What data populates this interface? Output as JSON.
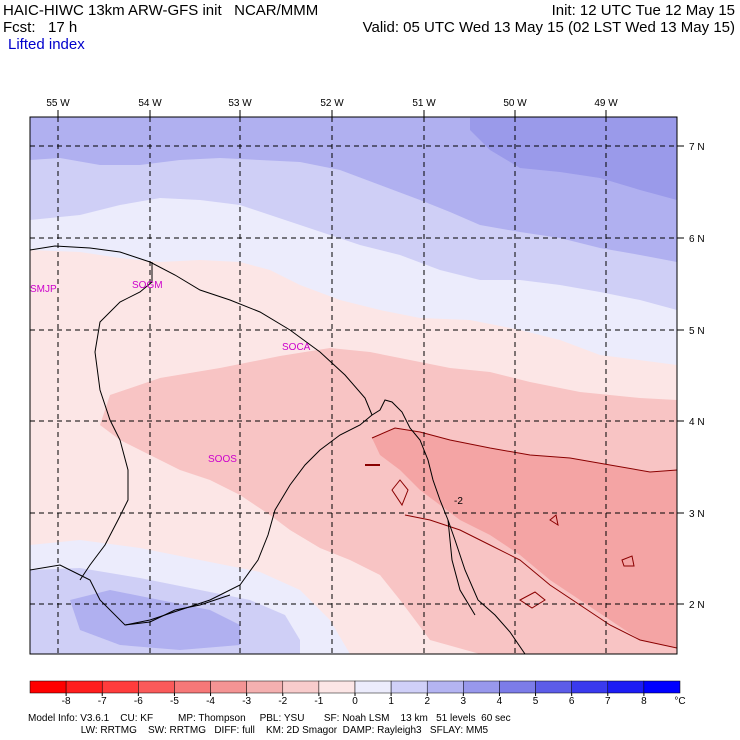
{
  "header": {
    "title": "HAIC-HIWC 13km ARW-GFS init   NCAR/MMM",
    "fcst": "Fcst:   17 h",
    "field": "Lifted index",
    "init": "Init: 12 UTC Tue 12 May 15",
    "valid": "Valid: 05 UTC Wed 13 May 15 (02 LST Wed 13 May 15)"
  },
  "map": {
    "lon_labels": [
      "55 W",
      "54 W",
      "53 W",
      "52 W",
      "51 W",
      "50 W",
      "49 W"
    ],
    "lat_labels": [
      "7 N",
      "6 N",
      "5 N",
      "4 N",
      "3 N",
      "2 N"
    ],
    "stations": [
      "SMJP",
      "SOGM",
      "SOCA",
      "SOOS"
    ],
    "contour_label": "-2",
    "colors": {
      "neg3": "#f4a4a4",
      "neg2": "#f8c4c4",
      "neg1": "#fce6e6",
      "pos1": "#ececfc",
      "pos2": "#cfcff6",
      "pos3": "#b0b0f0",
      "pos4": "#9a9aea",
      "station": "#cc00cc"
    }
  },
  "colorbar": {
    "ticks": [
      "-8",
      "-7",
      "-6",
      "-5",
      "-4",
      "-3",
      "-2",
      "-1",
      "0",
      "1",
      "2",
      "3",
      "4",
      "5",
      "6",
      "7",
      "8"
    ],
    "unit": "°C",
    "colors": [
      "#ff0000",
      "#ff1e1e",
      "#ff3c3c",
      "#fa5a5a",
      "#f67878",
      "#f49494",
      "#f4b0b0",
      "#f8cccc",
      "#fce6e6",
      "#ececfc",
      "#d0d0f8",
      "#b4b4f2",
      "#9898ec",
      "#7c7ce8",
      "#5c5ce8",
      "#3a3aee",
      "#1c1cf4",
      "#0000ff"
    ]
  },
  "footer": {
    "line1": "Model Info: V3.6.1    CU: KF         MP: Thompson     PBL: YSU       SF: Noah LSM    13 km   51 levels  60 sec",
    "line2": "                   LW: RRTMG    SW: RRTMG   DIFF: full    KM: 2D Smagor  DAMP: Rayleigh3   SFLAY: MM5"
  }
}
